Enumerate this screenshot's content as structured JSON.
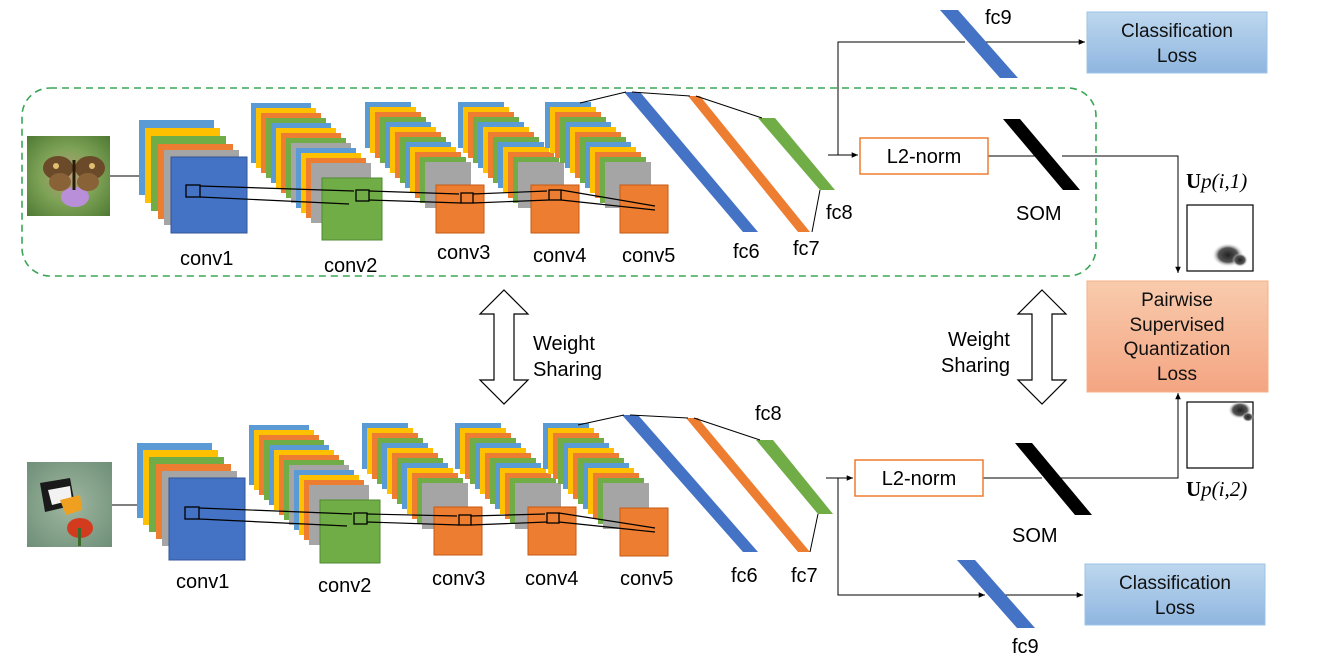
{
  "top_branch": {
    "layers": [
      "conv1",
      "conv2",
      "conv3",
      "conv4",
      "conv5"
    ],
    "fc": [
      "fc6",
      "fc7",
      "fc8"
    ],
    "head": "fc9",
    "classification": {
      "line1": "Classification",
      "line2": "Loss"
    },
    "l2norm": "L2-norm",
    "som": "SOM",
    "u_label": {
      "letter": "U",
      "subscript": "p(i,1)"
    }
  },
  "bottom_branch": {
    "layers": [
      "conv1",
      "conv2",
      "conv3",
      "conv4",
      "conv5"
    ],
    "fc": [
      "fc6",
      "fc7",
      "fc8"
    ],
    "head": "fc9",
    "classification": {
      "line1": "Classification",
      "line2": "Loss"
    },
    "l2norm": "L2-norm",
    "som": "SOM",
    "u_label": {
      "letter": "U",
      "subscript": "p(i,2)"
    }
  },
  "weight_sharing_left": {
    "line1": "Weight",
    "line2": "Sharing"
  },
  "weight_sharing_right": {
    "line1": "Weight",
    "line2": "Sharing"
  },
  "pairwise_loss": [
    "Pairwise",
    "Supervised",
    "Quantization",
    "Loss"
  ],
  "colors": {
    "blue": "#4472c4",
    "orange": "#ed7d31",
    "green": "#70ad47",
    "yellow": "#ffc000",
    "gray": "#a5a5a5",
    "lightblue": "#5b9bd5",
    "salmon": "#f4b183",
    "dashed": "#3aa655",
    "classbox": "#9dc3e6",
    "l2border": "#ed7d31"
  }
}
